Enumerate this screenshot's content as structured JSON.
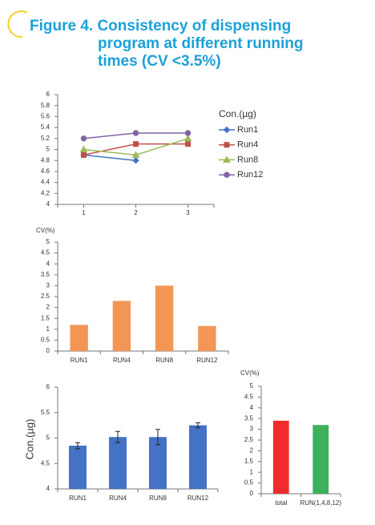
{
  "header": {
    "title_lines": [
      "Figure 4. Consistency of dispensing",
      "program at different running",
      "times (CV <3.5%)"
    ]
  },
  "chart_data": [
    {
      "type": "line",
      "legend_title": "Con.(µg)",
      "x": [
        1,
        2,
        3
      ],
      "xlim": [
        0.5,
        3.5
      ],
      "xticks": [
        1,
        2,
        3
      ],
      "ylim": [
        4,
        6
      ],
      "yticks": [
        4,
        4.2,
        4.4,
        4.6,
        4.8,
        5,
        5.2,
        5.4,
        5.6,
        5.8,
        6
      ],
      "grid": false,
      "legend": "right",
      "series": [
        {
          "name": "Run1",
          "color": "#4472c4",
          "marker": "diamond",
          "values": [
            4.9,
            4.8,
            null
          ]
        },
        {
          "name": "Run4",
          "color": "#c0504d",
          "marker": "square",
          "values": [
            4.9,
            5.1,
            5.1
          ]
        },
        {
          "name": "Run8",
          "color": "#9bbb59",
          "marker": "triangle",
          "values": [
            5.0,
            4.9,
            5.2
          ]
        },
        {
          "name": "Run12",
          "color": "#8064a2",
          "marker": "circle",
          "values": [
            5.2,
            5.3,
            5.3
          ]
        }
      ]
    },
    {
      "type": "bar",
      "y_label": "CV(%)",
      "categories": [
        "RUN1",
        "RUN4",
        "RUN8",
        "RUN12"
      ],
      "values": [
        1.2,
        2.3,
        3.0,
        1.15
      ],
      "color": "#f29555",
      "ylim": [
        0,
        5
      ],
      "yticks": [
        0,
        0.5,
        1,
        1.5,
        2,
        2.5,
        3,
        3.5,
        4,
        4.5,
        5
      ]
    },
    {
      "type": "bar",
      "y_label": "Con.(µg)",
      "categories": [
        "RUN1",
        "RUN4",
        "RUN8",
        "RUN12"
      ],
      "values": [
        4.85,
        5.02,
        5.02,
        5.25
      ],
      "errors": [
        0.06,
        0.11,
        0.15,
        0.05
      ],
      "color": "#4472c4",
      "ylim": [
        4,
        6
      ],
      "yticks": [
        4,
        4.5,
        5,
        5.5,
        6
      ]
    },
    {
      "type": "bar",
      "y_label": "CV(%)",
      "categories": [
        "total",
        "RUN(1,4,8,12)"
      ],
      "values": [
        3.4,
        3.2
      ],
      "colors": [
        "#ee2c2c",
        "#3cb05a"
      ],
      "ylim": [
        0,
        5
      ],
      "yticks": [
        0,
        0.5,
        1,
        1.5,
        2,
        2.5,
        3,
        3.5,
        4,
        4.5,
        5
      ]
    }
  ]
}
